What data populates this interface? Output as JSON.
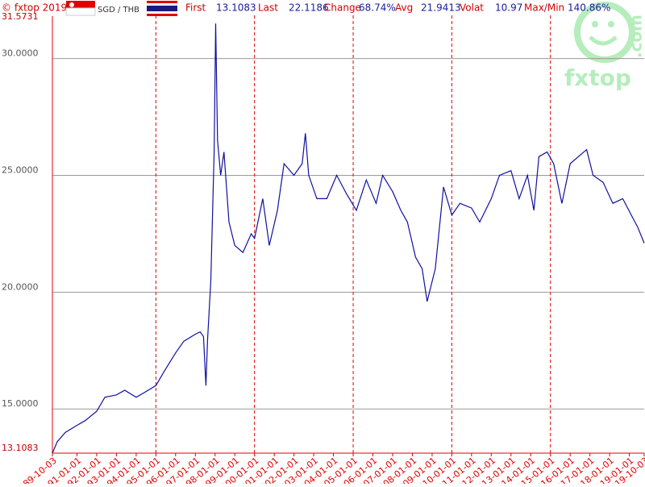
{
  "header": {
    "copyright": "© fxtop 2019",
    "pair": "SGD / THB",
    "stats": [
      {
        "label": "First",
        "value": "13.1083"
      },
      {
        "label": "Last",
        "value": "22.1186"
      },
      {
        "label": "Change",
        "value": "68.74%"
      },
      {
        "label": "Avg",
        "value": "21.9413"
      },
      {
        "label": "Volat",
        "value": "10.97"
      },
      {
        "label": "Max/Min",
        "value": "140.86%"
      }
    ],
    "watermark": {
      "brand": "fxtop",
      "suffix": ".com"
    }
  },
  "chart_data": {
    "type": "line",
    "color": "#1010a0",
    "x": [
      "1989-10-03",
      "1990-01-01",
      "1990-06-01",
      "1991-01-01",
      "1991-06-01",
      "1992-01-01",
      "1992-06-01",
      "1993-01-01",
      "1993-06-01",
      "1994-01-01",
      "1994-06-01",
      "1995-01-01",
      "1995-06-01",
      "1996-01-01",
      "1996-06-01",
      "1997-01-01",
      "1997-04-01",
      "1997-06-01",
      "1997-07-15",
      "1997-08-15",
      "1997-10-15",
      "1997-12-15",
      "1998-01-12",
      "1998-02-15",
      "1998-04-15",
      "1998-06-15",
      "1998-09-15",
      "1999-01-01",
      "1999-06-01",
      "1999-11-01",
      "2000-01-01",
      "2000-06-01",
      "2000-10-01",
      "2001-03-01",
      "2001-07-01",
      "2002-01-01",
      "2002-06-01",
      "2002-08-01",
      "2002-10-01",
      "2003-03-01",
      "2003-09-01",
      "2004-03-01",
      "2004-09-01",
      "2005-03-01",
      "2005-09-01",
      "2006-03-01",
      "2006-07-01",
      "2007-01-01",
      "2007-06-01",
      "2007-10-01",
      "2008-03-01",
      "2008-07-01",
      "2008-10-01",
      "2009-03-01",
      "2009-08-01",
      "2010-01-01",
      "2010-06-01",
      "2011-01-01",
      "2011-06-01",
      "2012-01-01",
      "2012-06-01",
      "2013-01-01",
      "2013-06-01",
      "2013-11-01",
      "2014-03-01",
      "2014-06-01",
      "2014-11-01",
      "2015-03-01",
      "2015-08-01",
      "2016-01-01",
      "2016-06-01",
      "2016-11-01",
      "2017-03-01",
      "2017-09-01",
      "2018-03-01",
      "2018-09-01",
      "2019-03-01",
      "2019-06-01",
      "2019-10-03"
    ],
    "values": [
      13.11,
      13.6,
      14.0,
      14.3,
      14.5,
      14.9,
      15.5,
      15.6,
      15.8,
      15.5,
      15.7,
      16.0,
      16.6,
      17.4,
      17.9,
      18.2,
      18.3,
      18.1,
      16.0,
      18.0,
      20.5,
      26.0,
      31.5,
      26.5,
      25.0,
      26.0,
      23.0,
      22.0,
      21.7,
      22.5,
      22.3,
      24.0,
      22.0,
      23.5,
      25.5,
      25.0,
      25.5,
      26.8,
      25.0,
      24.0,
      24.0,
      25.0,
      24.2,
      23.5,
      24.8,
      23.8,
      25.0,
      24.3,
      23.5,
      23.0,
      21.5,
      21.0,
      19.6,
      21.0,
      24.5,
      23.3,
      23.8,
      23.6,
      23.0,
      24.0,
      25.0,
      25.2,
      24.0,
      25.0,
      23.5,
      25.8,
      26.0,
      25.5,
      23.8,
      25.5,
      25.8,
      26.1,
      25.0,
      24.7,
      23.8,
      24.0,
      23.2,
      22.8,
      22.1
    ],
    "ylim": [
      13.1083,
      31.5731
    ],
    "yticks": [
      13.1083,
      {
        "value": 15,
        "label": "15.0000"
      },
      {
        "value": 20,
        "label": "20.0000"
      },
      {
        "value": 25,
        "label": "25.0000"
      },
      {
        "value": 30,
        "label": "30.0000"
      },
      31.5731
    ],
    "xlim": [
      "1989-10-03",
      "2019-10-03"
    ],
    "xticks": [
      "1989-10-03",
      "1991-01-01",
      "1992-01-01",
      "1993-01-01",
      "1994-01-01",
      "1995-01-01",
      "1996-01-01",
      "1997-01-01",
      "1998-01-01",
      "1999-01-01",
      "2000-01-01",
      "2001-01-01",
      "2002-01-01",
      "2003-01-01",
      "2004-01-01",
      "2005-01-01",
      "2006-01-01",
      "2007-01-01",
      "2008-01-01",
      "2009-01-01",
      "2010-01-01",
      "2011-01-01",
      "2012-01-01",
      "2013-01-01",
      "2014-01-01",
      "2015-01-01",
      "2016-01-01",
      "2017-01-01",
      "2018-01-01",
      "2019-01-01",
      "2019-10-03"
    ],
    "grid": true
  }
}
